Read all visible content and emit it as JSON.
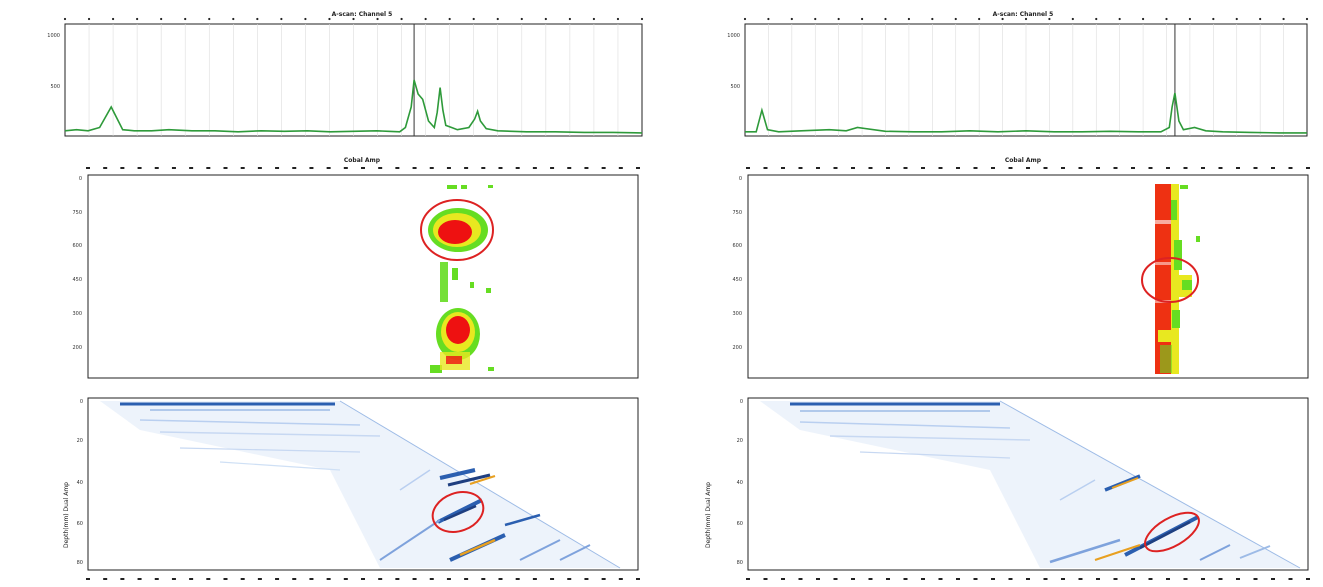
{
  "chart_data": [
    {
      "panel": "left-top",
      "type": "line",
      "title": "A-scan: Channel 5",
      "ylim": [
        0,
        1000
      ],
      "yticks": [
        "1000",
        "500"
      ],
      "grid": true,
      "line_color": "#2e9a3a",
      "cursor_x": 0.605,
      "x": [
        0.0,
        0.02,
        0.04,
        0.06,
        0.08,
        0.1,
        0.12,
        0.15,
        0.18,
        0.22,
        0.26,
        0.3,
        0.34,
        0.38,
        0.42,
        0.46,
        0.5,
        0.54,
        0.56,
        0.58,
        0.59,
        0.6,
        0.605,
        0.612,
        0.62,
        0.63,
        0.64,
        0.645,
        0.65,
        0.655,
        0.66,
        0.67,
        0.68,
        0.7,
        0.71,
        0.715,
        0.72,
        0.73,
        0.75,
        0.8,
        0.85,
        0.9,
        0.95,
        1.0
      ],
      "values": [
        30,
        40,
        30,
        60,
        250,
        40,
        30,
        30,
        40,
        30,
        30,
        20,
        30,
        25,
        30,
        20,
        25,
        30,
        25,
        20,
        60,
        250,
        500,
        370,
        320,
        120,
        60,
        200,
        430,
        220,
        80,
        60,
        40,
        60,
        140,
        210,
        120,
        50,
        30,
        20,
        20,
        15,
        15,
        10
      ]
    },
    {
      "panel": "right-top",
      "type": "line",
      "title": "A-scan: Channel 5",
      "ylim": [
        0,
        1000
      ],
      "yticks": [
        "1000",
        "500"
      ],
      "grid": true,
      "line_color": "#2e9a3a",
      "cursor_x": 0.765,
      "x": [
        0.0,
        0.02,
        0.03,
        0.04,
        0.06,
        0.1,
        0.15,
        0.18,
        0.2,
        0.25,
        0.3,
        0.35,
        0.4,
        0.45,
        0.5,
        0.55,
        0.6,
        0.65,
        0.7,
        0.74,
        0.755,
        0.76,
        0.765,
        0.772,
        0.78,
        0.8,
        0.82,
        0.85,
        0.9,
        0.95,
        1.0
      ],
      "values": [
        20,
        20,
        220,
        40,
        20,
        30,
        40,
        30,
        60,
        25,
        20,
        20,
        30,
        20,
        30,
        20,
        20,
        25,
        20,
        20,
        60,
        250,
        380,
        120,
        40,
        60,
        30,
        20,
        15,
        10,
        10
      ]
    },
    {
      "panel": "left-middle",
      "type": "heatmap",
      "title": "Cobal Amp",
      "yticks": [
        "0",
        "750",
        "600",
        "450",
        "300",
        "200"
      ],
      "colors": [
        "#66dd22",
        "#e8e820",
        "#ee1111"
      ],
      "annotation": {
        "shape": "ellipse",
        "color": "#dd2222"
      }
    },
    {
      "panel": "right-middle",
      "type": "heatmap",
      "title": "Cobal Amp",
      "yticks": [
        "0",
        "750",
        "600",
        "450",
        "300",
        "200"
      ],
      "colors": [
        "#66dd22",
        "#e8e820",
        "#ee1111"
      ],
      "annotation": {
        "shape": "ellipse",
        "color": "#dd2222"
      }
    },
    {
      "panel": "left-bottom",
      "type": "heatmap",
      "ylabel": "Depth(mm) Dual Amp",
      "yticks": [
        "0",
        "20",
        "40",
        "60",
        "80"
      ],
      "colors": [
        "#cfe0f5",
        "#2b5fb0",
        "#e8a020"
      ],
      "annotation": {
        "shape": "ellipse",
        "color": "#dd2222"
      }
    },
    {
      "panel": "right-bottom",
      "type": "heatmap",
      "ylabel": "Depth(mm) Dual Amp",
      "yticks": [
        "0",
        "20",
        "40",
        "60",
        "80"
      ],
      "colors": [
        "#cfe0f5",
        "#2b5fb0",
        "#e8a020"
      ],
      "annotation": {
        "shape": "ellipse",
        "color": "#dd2222"
      }
    }
  ]
}
